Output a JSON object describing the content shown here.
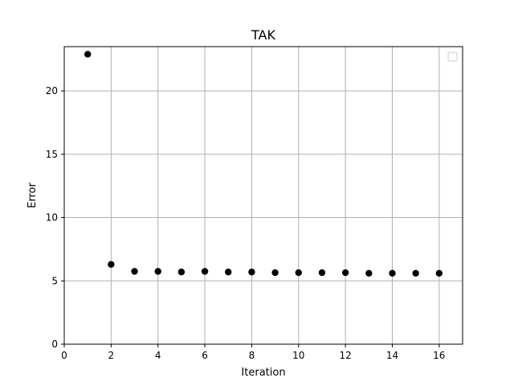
{
  "chart_data": {
    "type": "scatter",
    "title": "TAK",
    "xlabel": "Iteration",
    "ylabel": "Error",
    "xlim": [
      0,
      17
    ],
    "ylim": [
      0,
      23.5
    ],
    "xticks": [
      0,
      2,
      4,
      6,
      8,
      10,
      12,
      14,
      16
    ],
    "yticks": [
      0,
      5,
      10,
      15,
      20
    ],
    "grid": true,
    "legend": "upper right (empty)",
    "marker_color": "#000000",
    "points": [
      {
        "x": 1,
        "y": 22.9
      },
      {
        "x": 2,
        "y": 6.3
      },
      {
        "x": 3,
        "y": 5.75
      },
      {
        "x": 4,
        "y": 5.75
      },
      {
        "x": 5,
        "y": 5.7
      },
      {
        "x": 6,
        "y": 5.75
      },
      {
        "x": 7,
        "y": 5.7
      },
      {
        "x": 8,
        "y": 5.7
      },
      {
        "x": 9,
        "y": 5.65
      },
      {
        "x": 10,
        "y": 5.65
      },
      {
        "x": 11,
        "y": 5.65
      },
      {
        "x": 12,
        "y": 5.65
      },
      {
        "x": 13,
        "y": 5.6
      },
      {
        "x": 14,
        "y": 5.6
      },
      {
        "x": 15,
        "y": 5.6
      },
      {
        "x": 16,
        "y": 5.6
      }
    ]
  }
}
